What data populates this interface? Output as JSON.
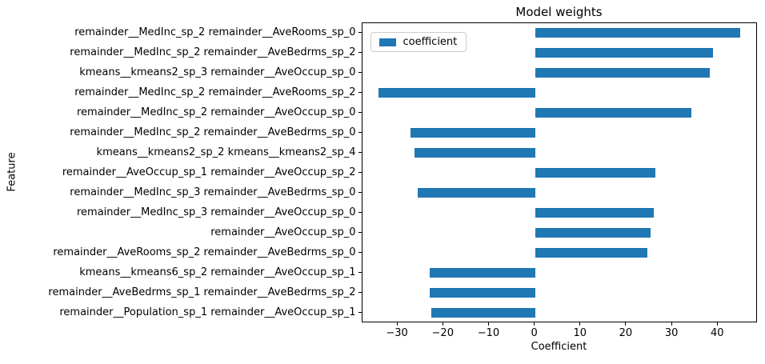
{
  "chart_data": {
    "type": "bar",
    "orientation": "horizontal",
    "title": "Model weights",
    "xlabel": "Coefficient",
    "ylabel": "Feature",
    "legend": {
      "label": "coefficient",
      "position": "upper left"
    },
    "bar_color": "#1f77b4",
    "grid": false,
    "xlim": [
      -37.8,
      48.7
    ],
    "xticks": [
      -30,
      -20,
      -10,
      0,
      10,
      20,
      30,
      40
    ],
    "xtick_labels": [
      "−30",
      "−20",
      "−10",
      "0",
      "10",
      "20",
      "30",
      "40"
    ],
    "categories": [
      "remainder__MedInc_sp_2 remainder__AveRooms_sp_0",
      "remainder__MedInc_sp_2 remainder__AveBedrms_sp_2",
      "kmeans__kmeans2_sp_3 remainder__AveOccup_sp_0",
      "remainder__MedInc_sp_2 remainder__AveRooms_sp_2",
      "remainder__MedInc_sp_2 remainder__AveOccup_sp_0",
      "remainder__MedInc_sp_2 remainder__AveBedrms_sp_0",
      "kmeans__kmeans2_sp_2 kmeans__kmeans2_sp_4",
      "remainder__AveOccup_sp_1 remainder__AveOccup_sp_2",
      "remainder__MedInc_sp_3 remainder__AveBedrms_sp_0",
      "remainder__MedInc_sp_3 remainder__AveOccup_sp_0",
      "remainder__AveOccup_sp_0",
      "remainder__AveRooms_sp_2 remainder__AveBedrms_sp_0",
      "kmeans__kmeans6_sp_2 remainder__AveOccup_sp_1",
      "remainder__AveBedrms_sp_1 remainder__AveBedrms_sp_2",
      "remainder__Population_sp_1 remainder__AveOccup_sp_1"
    ],
    "values": [
      44.9,
      38.9,
      38.2,
      -34.2,
      34.1,
      -27.2,
      -26.4,
      26.3,
      -25.6,
      26.0,
      25.3,
      24.6,
      -23.1,
      -23.0,
      -22.7
    ]
  }
}
